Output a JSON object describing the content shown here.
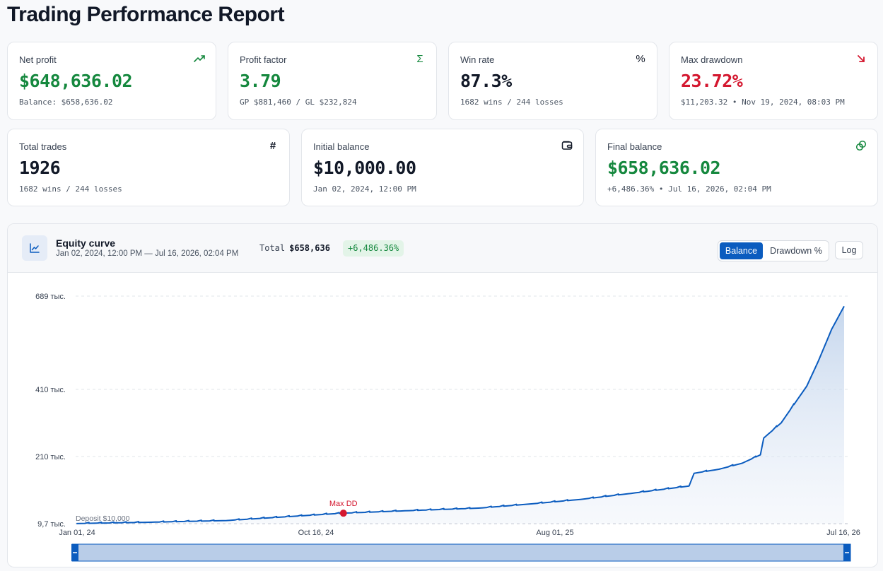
{
  "title": "Trading Performance Report",
  "cards": {
    "net_profit": {
      "label": "Net profit",
      "value": "$648,636.02",
      "sub": "Balance: $658,636.02",
      "icon": "trending-up-icon"
    },
    "profit_factor": {
      "label": "Profit factor",
      "value": "3.79",
      "sub": "GP $881,460 / GL $232,824",
      "icon": "sigma-icon"
    },
    "win_rate": {
      "label": "Win rate",
      "value": "87.3%",
      "sub": "1682 wins / 244 losses",
      "icon": "percent-icon"
    },
    "max_drawdown": {
      "label": "Max drawdown",
      "value": "23.72%",
      "sub": "$11,203.32 • Nov 19, 2024, 08:03 PM",
      "icon": "arrow-down-right-icon"
    },
    "total_trades": {
      "label": "Total trades",
      "value": "1926",
      "sub": "1682 wins / 244 losses",
      "icon": "hash-icon"
    },
    "initial_balance": {
      "label": "Initial balance",
      "value": "$10,000.00",
      "sub": "Jan 02, 2024, 12:00 PM",
      "icon": "wallet-icon"
    },
    "final_balance": {
      "label": "Final balance",
      "value": "$658,636.02",
      "sub": "+6,486.36% • Jul 16, 2026, 02:04 PM",
      "icon": "coins-icon"
    }
  },
  "equity": {
    "title": "Equity curve",
    "range": "Jan 02, 2024, 12:00 PM — Jul 16, 2026, 02:04 PM",
    "total_label": "Total",
    "total_value": "$658,636",
    "pct_badge": "+6,486.36%",
    "buttons": {
      "balance": "Balance",
      "drawdown": "Drawdown %",
      "log": "Log"
    }
  },
  "colors": {
    "green": "#15883e",
    "red": "#d4172f",
    "accent": "#0b5cbf"
  },
  "chart_data": {
    "type": "area",
    "y_ticks": [
      "689 тыс.",
      "410 тыс.",
      "210 тыс.",
      "9,7 тыс."
    ],
    "y_tick_values": [
      689000,
      410000,
      210000,
      9700
    ],
    "x_ticks": [
      "Jan 01, 24",
      "Oct 16, 24",
      "Aug 01, 25",
      "Jul 16, 26"
    ],
    "ylim": [
      9700,
      689000
    ],
    "series": [
      {
        "name": "Balance",
        "x": [
          "2024-01-02",
          "2024-04-01",
          "2024-07-01",
          "2024-11-19",
          "2025-02-01",
          "2025-05-01",
          "2025-07-01",
          "2025-09-01",
          "2025-11-01",
          "2026-01-10",
          "2026-01-16",
          "2026-02-15",
          "2026-03-15",
          "2026-04-06",
          "2026-04-10",
          "2026-05-01",
          "2026-06-01",
          "2026-06-15",
          "2026-07-01",
          "2026-07-16"
        ],
        "values": [
          10000,
          14000,
          19000,
          41000,
          48000,
          56000,
          68000,
          82000,
          100000,
          122000,
          160000,
          172000,
          190000,
          215000,
          265000,
          310000,
          420000,
          495000,
          590000,
          658636
        ]
      }
    ],
    "annotations": [
      {
        "label": "Max DD",
        "x": "2024-11-19",
        "value": 41000
      },
      {
        "label": "Deposit $10,000",
        "value": 10000
      }
    ],
    "grid": true
  }
}
